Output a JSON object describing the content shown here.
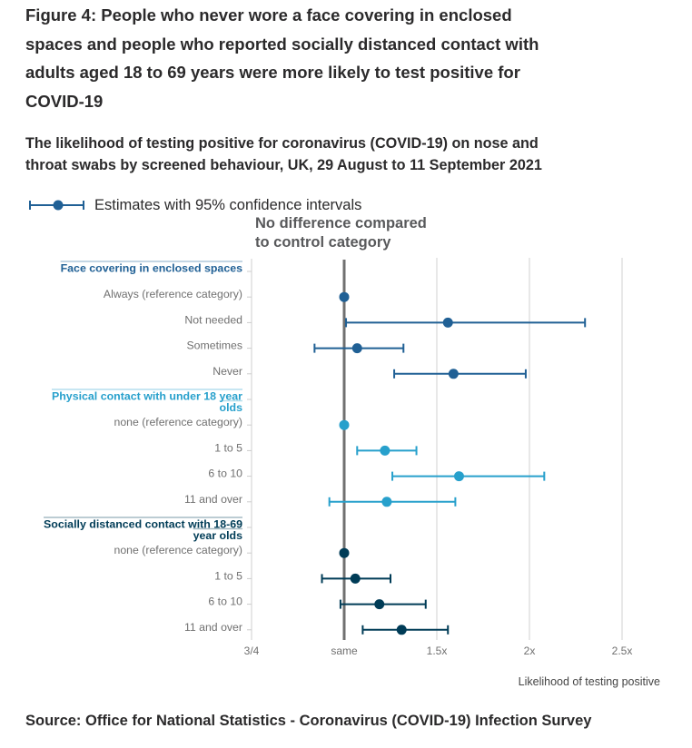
{
  "chart_data": {
    "type": "scatter",
    "variant": "forest plot (point estimates with 95% confidence intervals)",
    "title": "Figure 4: People who never wore a face covering in enclosed spaces and people who reported socially distanced contact with adults aged 18 to 69 years were more likely to test positive for COVID-19",
    "subtitle": "The likelihood of testing positive for coronavirus (COVID-19) on nose and throat swabs by screened behaviour, UK, 29 August to 11 September 2021",
    "xlabel": "Likelihood of testing positive",
    "ylabel": "",
    "xlim": [
      0.5,
      2.75
    ],
    "x_ticks": [
      {
        "value": 0.5,
        "label": "3/4"
      },
      {
        "value": 1.0,
        "label": "same"
      },
      {
        "value": 1.5,
        "label": "1.5x"
      },
      {
        "value": 2.0,
        "label": "2x"
      },
      {
        "value": 2.5,
        "label": "2.5x"
      }
    ],
    "grid": "vertical",
    "reference_line": {
      "value": 1.0,
      "label": "No difference compared to control category",
      "color": "#707070"
    },
    "legend": {
      "position": "top-left",
      "entries": [
        {
          "label": "Estimates with 95% confidence intervals",
          "marker": "point-with-error-bar",
          "color": "#206095"
        }
      ]
    },
    "groups": [
      {
        "name": "Face covering in enclosed spaces",
        "label_lines": [
          "Face covering in enclosed spaces"
        ],
        "color": "#206095",
        "categories": [
          {
            "label": "Always (reference category)",
            "estimate": 1.0,
            "ci_lower": null,
            "ci_upper": null
          },
          {
            "label": "Not needed",
            "estimate": 1.56,
            "ci_lower": 1.01,
            "ci_upper": 2.3
          },
          {
            "label": "Sometimes",
            "estimate": 1.07,
            "ci_lower": 0.84,
            "ci_upper": 1.32
          },
          {
            "label": "Never",
            "estimate": 1.59,
            "ci_lower": 1.27,
            "ci_upper": 1.98
          }
        ]
      },
      {
        "name": "Physical contact with under 18 year olds",
        "label_lines": [
          "Physical contact with under 18 year",
          "olds"
        ],
        "color": "#27a0cc",
        "categories": [
          {
            "label": "none (reference category)",
            "estimate": 1.0,
            "ci_lower": null,
            "ci_upper": null
          },
          {
            "label": "1 to 5",
            "estimate": 1.22,
            "ci_lower": 1.07,
            "ci_upper": 1.39
          },
          {
            "label": "6 to 10",
            "estimate": 1.62,
            "ci_lower": 1.26,
            "ci_upper": 2.08
          },
          {
            "label": "11 and over",
            "estimate": 1.23,
            "ci_lower": 0.92,
            "ci_upper": 1.6
          }
        ]
      },
      {
        "name": "Socially distanced contact with 18-69 year olds",
        "label_lines": [
          "Socially distanced contact with 18-69",
          "year olds"
        ],
        "color": "#003c57",
        "categories": [
          {
            "label": "none (reference category)",
            "estimate": 1.0,
            "ci_lower": null,
            "ci_upper": null
          },
          {
            "label": "1 to 5",
            "estimate": 1.06,
            "ci_lower": 0.88,
            "ci_upper": 1.25
          },
          {
            "label": "6 to 10",
            "estimate": 1.19,
            "ci_lower": 0.98,
            "ci_upper": 1.44
          },
          {
            "label": "11 and over",
            "estimate": 1.31,
            "ci_lower": 1.1,
            "ci_upper": 1.56
          }
        ]
      }
    ]
  },
  "source": "Source: Office for National Statistics - Coronavirus (COVID-19) Infection Survey"
}
